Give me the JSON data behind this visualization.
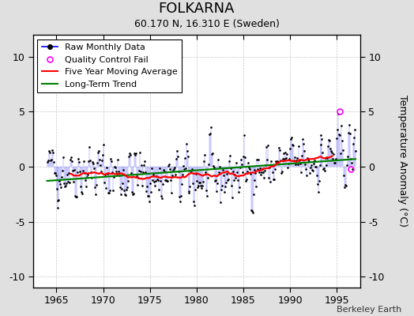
{
  "title": "FOLKARNA",
  "subtitle": "60.170 N, 16.310 E (Sweden)",
  "ylabel": "Temperature Anomaly (°C)",
  "credit": "Berkeley Earth",
  "xlim": [
    1962.5,
    1997.5
  ],
  "ylim": [
    -11,
    12
  ],
  "yticks": [
    -10,
    -5,
    0,
    5,
    10
  ],
  "xticks": [
    1965,
    1970,
    1975,
    1980,
    1985,
    1990,
    1995
  ],
  "bg_color": "#e0e0e0",
  "plot_bg_color": "#ffffff",
  "title_fontsize": 13,
  "subtitle_fontsize": 9,
  "tick_fontsize": 9,
  "legend_fontsize": 8
}
